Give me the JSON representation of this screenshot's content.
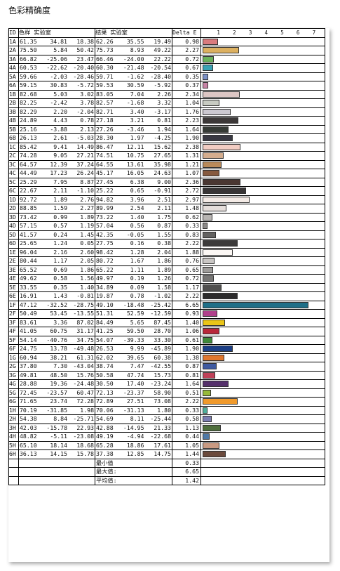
{
  "title": "色彩精确度",
  "headers": {
    "id": "ID",
    "sample": "色样 实验室",
    "result": "结果 实验室",
    "delta": "Delta E"
  },
  "axis_ticks": [
    "1",
    "2",
    "3",
    "4",
    "5",
    "6",
    "7"
  ],
  "rows": [
    {
      "id": "1A",
      "s": [
        "61.35",
        "34.81",
        "18.38"
      ],
      "r": [
        "62.26",
        "35.55",
        "19.49"
      ],
      "de": "0.98",
      "color": "#d97b7e"
    },
    {
      "id": "2A",
      "s": [
        "75.50",
        "5.84",
        "50.42"
      ],
      "r": [
        "75.73",
        "8.93",
        "49.22"
      ],
      "de": "2.27",
      "color": "#dcb060"
    },
    {
      "id": "3A",
      "s": [
        "66.82",
        "-25.06",
        "23.47"
      ],
      "r": [
        "66.46",
        "-24.00",
        "22.22"
      ],
      "de": "0.72",
      "color": "#6bb25c"
    },
    {
      "id": "4A",
      "s": [
        "60.53",
        "-22.62",
        "-20.40"
      ],
      "r": [
        "60.30",
        "-21.48",
        "-20.54"
      ],
      "de": "0.67",
      "color": "#3aa3b5"
    },
    {
      "id": "5A",
      "s": [
        "59.66",
        "-2.03",
        "-28.46"
      ],
      "r": [
        "59.71",
        "-1.62",
        "-28.40"
      ],
      "de": "0.35",
      "color": "#7a90c6"
    },
    {
      "id": "6A",
      "s": [
        "59.15",
        "30.83",
        "-5.72"
      ],
      "r": [
        "59.53",
        "30.59",
        "-5.92"
      ],
      "de": "0.37",
      "color": "#c783a5"
    },
    {
      "id": "1B",
      "s": [
        "82.68",
        "5.03",
        "3.02"
      ],
      "r": [
        "83.05",
        "7.04",
        "2.26"
      ],
      "de": "2.34",
      "color": "#dcc6c4"
    },
    {
      "id": "2B",
      "s": [
        "82.25",
        "-2.42",
        "3.78"
      ],
      "r": [
        "82.57",
        "-1.68",
        "3.32"
      ],
      "de": "1.04",
      "color": "#c8cbc2"
    },
    {
      "id": "3B",
      "s": [
        "82.29",
        "2.20",
        "-2.04"
      ],
      "r": [
        "82.71",
        "3.40",
        "-3.17"
      ],
      "de": "1.76",
      "color": "#cbc8d0"
    },
    {
      "id": "4B",
      "s": [
        "24.89",
        "4.43",
        "0.78"
      ],
      "r": [
        "27.18",
        "3.21",
        "0.81"
      ],
      "de": "2.23",
      "color": "#3c3838"
    },
    {
      "id": "5B",
      "s": [
        "25.16",
        "-3.88",
        "2.13"
      ],
      "r": [
        "27.26",
        "-3.46",
        "1.94"
      ],
      "de": "1.64",
      "color": "#353a35"
    },
    {
      "id": "6B",
      "s": [
        "26.13",
        "2.61",
        "-5.03"
      ],
      "r": [
        "28.30",
        "1.97",
        "-4.25"
      ],
      "de": "1.90",
      "color": "#383842"
    },
    {
      "id": "1C",
      "s": [
        "85.42",
        "9.41",
        "14.49"
      ],
      "r": [
        "86.47",
        "12.11",
        "15.62"
      ],
      "de": "2.38",
      "color": "#f2cdc3"
    },
    {
      "id": "2C",
      "s": [
        "74.28",
        "9.05",
        "27.21"
      ],
      "r": [
        "74.51",
        "10.75",
        "27.65"
      ],
      "de": "1.31",
      "color": "#d4ad8e"
    },
    {
      "id": "3C",
      "s": [
        "64.57",
        "12.39",
        "37.24"
      ],
      "r": [
        "64.55",
        "13.61",
        "35.98"
      ],
      "de": "1.21",
      "color": "#b98a5a"
    },
    {
      "id": "4C",
      "s": [
        "44.49",
        "17.23",
        "26.24"
      ],
      "r": [
        "45.17",
        "16.05",
        "24.63"
      ],
      "de": "1.07",
      "color": "#865a3f"
    },
    {
      "id": "5C",
      "s": [
        "25.29",
        "7.95",
        "8.87"
      ],
      "r": [
        "27.45",
        "6.38",
        "9.00"
      ],
      "de": "2.36",
      "color": "#4a3732"
    },
    {
      "id": "6C",
      "s": [
        "22.67",
        "2.11",
        "-1.10"
      ],
      "r": [
        "25.22",
        "0.65",
        "-0.91"
      ],
      "de": "2.72",
      "color": "#383536"
    },
    {
      "id": "1D",
      "s": [
        "92.72",
        "1.89",
        "2.76"
      ],
      "r": [
        "94.82",
        "3.96",
        "2.51"
      ],
      "de": "2.97",
      "color": "#f4ebe6"
    },
    {
      "id": "2D",
      "s": [
        "88.85",
        "1.59",
        "2.27"
      ],
      "r": [
        "89.99",
        "2.54",
        "2.11"
      ],
      "de": "1.48",
      "color": "#e5dedb"
    },
    {
      "id": "3D",
      "s": [
        "73.42",
        "0.99",
        "1.89"
      ],
      "r": [
        "73.22",
        "1.40",
        "1.75"
      ],
      "de": "0.62",
      "color": "#b7b4b2"
    },
    {
      "id": "4D",
      "s": [
        "57.15",
        "0.57",
        "1.19"
      ],
      "r": [
        "57.04",
        "0.56",
        "0.87"
      ],
      "de": "0.33",
      "color": "#8b8988"
    },
    {
      "id": "5D",
      "s": [
        "41.57",
        "0.24",
        "1.45"
      ],
      "r": [
        "42.35",
        "-0.05",
        "1.55"
      ],
      "de": "0.83",
      "color": "#636261"
    },
    {
      "id": "6D",
      "s": [
        "25.65",
        "1.24",
        "0.05"
      ],
      "r": [
        "27.75",
        "0.16",
        "0.38"
      ],
      "de": "2.22",
      "color": "#3c3b3b"
    },
    {
      "id": "1E",
      "s": [
        "96.04",
        "2.16",
        "2.60"
      ],
      "r": [
        "98.42",
        "1.28",
        "2.04"
      ],
      "de": "1.88",
      "color": "#fbf7f4"
    },
    {
      "id": "2E",
      "s": [
        "80.44",
        "1.17",
        "2.05"
      ],
      "r": [
        "80.72",
        "1.67",
        "1.86"
      ],
      "de": "0.76",
      "color": "#cac7c5"
    },
    {
      "id": "3E",
      "s": [
        "65.52",
        "0.69",
        "1.86"
      ],
      "r": [
        "65.22",
        "1.11",
        "1.89"
      ],
      "de": "0.65",
      "color": "#9f9d9b"
    },
    {
      "id": "4E",
      "s": [
        "49.62",
        "0.58",
        "1.56"
      ],
      "r": [
        "49.97",
        "0.19",
        "1.26"
      ],
      "de": "0.72",
      "color": "#777675"
    },
    {
      "id": "5E",
      "s": [
        "33.55",
        "0.35",
        "1.40"
      ],
      "r": [
        "34.89",
        "0.09",
        "1.58"
      ],
      "de": "1.17",
      "color": "#504f4e"
    },
    {
      "id": "6E",
      "s": [
        "16.91",
        "1.43",
        "-0.81"
      ],
      "r": [
        "19.87",
        "0.78",
        "-1.02"
      ],
      "de": "2.22",
      "color": "#2c2b2c"
    },
    {
      "id": "1F",
      "s": [
        "47.12",
        "-32.52",
        "-28.75"
      ],
      "r": [
        "49.10",
        "-18.48",
        "-25.42"
      ],
      "de": "6.65",
      "color": "#1f6f88"
    },
    {
      "id": "2F",
      "s": [
        "50.49",
        "53.45",
        "-13.55"
      ],
      "r": [
        "51.31",
        "52.59",
        "-12.59"
      ],
      "de": "0.93",
      "color": "#b0418c"
    },
    {
      "id": "3F",
      "s": [
        "83.61",
        "3.36",
        "87.02"
      ],
      "r": [
        "84.49",
        "5.65",
        "87.45"
      ],
      "de": "1.40",
      "color": "#eac518"
    },
    {
      "id": "4F",
      "s": [
        "41.05",
        "60.75",
        "31.17"
      ],
      "r": [
        "41.25",
        "59.50",
        "28.70"
      ],
      "de": "1.06",
      "color": "#b8283a"
    },
    {
      "id": "5F",
      "s": [
        "54.14",
        "-40.76",
        "34.75"
      ],
      "r": [
        "54.07",
        "-39.33",
        "33.30"
      ],
      "de": "0.61",
      "color": "#3f8a3a"
    },
    {
      "id": "6F",
      "s": [
        "24.75",
        "13.78",
        "-49.48"
      ],
      "r": [
        "26.53",
        "9.99",
        "-45.89"
      ],
      "de": "1.90",
      "color": "#1c3f86"
    },
    {
      "id": "1G",
      "s": [
        "60.94",
        "38.21",
        "61.31"
      ],
      "r": [
        "62.02",
        "39.65",
        "60.38"
      ],
      "de": "1.38",
      "color": "#e0772e"
    },
    {
      "id": "2G",
      "s": [
        "37.80",
        "7.30",
        "-43.04"
      ],
      "r": [
        "38.74",
        "7.47",
        "-42.55"
      ],
      "de": "0.87",
      "color": "#3f5aa0"
    },
    {
      "id": "3G",
      "s": [
        "49.81",
        "48.50",
        "15.76"
      ],
      "r": [
        "50.58",
        "47.74",
        "15.73"
      ],
      "de": "0.81",
      "color": "#bf4158"
    },
    {
      "id": "4G",
      "s": [
        "28.88",
        "19.36",
        "-24.48"
      ],
      "r": [
        "30.50",
        "17.40",
        "-23.24"
      ],
      "de": "1.64",
      "color": "#55306b"
    },
    {
      "id": "5G",
      "s": [
        "72.45",
        "-23.57",
        "60.47"
      ],
      "r": [
        "72.13",
        "-23.37",
        "58.90"
      ],
      "de": "0.51",
      "color": "#97ba3a"
    },
    {
      "id": "6G",
      "s": [
        "71.65",
        "23.74",
        "72.28"
      ],
      "r": [
        "72.89",
        "27.51",
        "73.08"
      ],
      "de": "2.22",
      "color": "#f09a2c"
    },
    {
      "id": "1H",
      "s": [
        "70.19",
        "-31.85",
        "1.98"
      ],
      "r": [
        "70.06",
        "-31.13",
        "1.80"
      ],
      "de": "0.33",
      "color": "#4fb09c"
    },
    {
      "id": "2H",
      "s": [
        "54.38",
        "8.84",
        "-25.71"
      ],
      "r": [
        "54.69",
        "8.11",
        "-25.44"
      ],
      "de": "0.58",
      "color": "#7c7eb2"
    },
    {
      "id": "3H",
      "s": [
        "42.03",
        "-15.78",
        "22.93"
      ],
      "r": [
        "42.88",
        "-14.95",
        "21.33"
      ],
      "de": "1.13",
      "color": "#4f6f3c"
    },
    {
      "id": "4H",
      "s": [
        "48.82",
        "-5.11",
        "-23.08"
      ],
      "r": [
        "49.19",
        "-4.94",
        "-22.68"
      ],
      "de": "0.44",
      "color": "#4f79a7"
    },
    {
      "id": "5H",
      "s": [
        "65.10",
        "18.14",
        "18.68"
      ],
      "r": [
        "65.28",
        "18.86",
        "17.61"
      ],
      "de": "1.05",
      "color": "#c99a82"
    },
    {
      "id": "6H",
      "s": [
        "36.13",
        "14.15",
        "15.78"
      ],
      "r": [
        "37.38",
        "12.85",
        "14.75"
      ],
      "de": "1.44",
      "color": "#6b4a3c"
    }
  ],
  "summary": [
    {
      "label": "最小值",
      "value": "0.33"
    },
    {
      "label": "最大值:",
      "value": "6.65"
    },
    {
      "label": "平均值:",
      "value": "1.42"
    }
  ]
}
